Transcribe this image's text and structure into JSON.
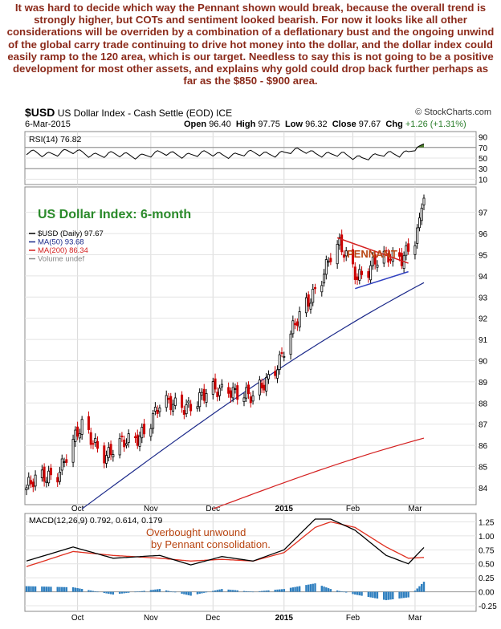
{
  "intro_text": "It was hard to decide which way the Pennant shown would break, because the overall trend is strongly higher, but COTs and sentiment looked bearish. For now it looks like all other considerations will be overriden by a combination of a deflationary bust and the ongoing unwind of the global carry trade continuing to drive hot money into the dollar, and the dollar index could easily ramp to the 120 area, which is our target. Needless to say this is not going to be a positive development for most other assets, and explains why gold could drop back further perhaps as far as the $850 - $900 area.",
  "header": {
    "symbol": "$USD",
    "name": "US Dollar Index - Cash Settle (EOD) ICE",
    "watermark": "© StockCharts.com",
    "date": "6-Mar-2015",
    "open_label": "Open",
    "open": "96.40",
    "high_label": "High",
    "high": "97.75",
    "low_label": "Low",
    "low": "96.32",
    "close_label": "Close",
    "close": "97.67",
    "chg_label": "Chg",
    "chg": "+1.26 (+1.31%)"
  },
  "colors": {
    "price_up": "#000000",
    "price_down": "#cc0000",
    "ma50": "#1c2a8a",
    "ma200": "#d42020",
    "rsi_fill": "#4a7a2a",
    "macd_line": "#000000",
    "signal_line": "#e03020",
    "histogram": "#2f7fbf",
    "annotation": "#b84410",
    "title_green": "#2a8a2a"
  },
  "chart_data": [
    {
      "type": "line",
      "title": "RSI(14) 76.82",
      "y_ticks": [
        90,
        70,
        50,
        30,
        10
      ],
      "ylim": [
        0,
        100
      ],
      "reference_lines": [
        70,
        30
      ],
      "x": [
        "2014-09-08",
        "2014-09-29",
        "2014-10-20",
        "2014-11-10",
        "2014-12-01",
        "2014-12-22",
        "2015-01-12",
        "2015-02-02",
        "2015-02-23",
        "2015-03-06"
      ],
      "values": [
        58,
        60,
        54,
        57,
        56,
        57,
        62,
        51,
        56,
        76.82
      ]
    },
    {
      "type": "candlestick",
      "chart_title": "US Dollar Index: 6-month",
      "legend": [
        "$USD (Daily) 97.67",
        "MA(50) 93.68",
        "MA(200) 86.34",
        "Volume undef"
      ],
      "x_tick_labels": [
        "Oct",
        "Nov",
        "Dec",
        "2015",
        "Feb",
        "Mar"
      ],
      "y_ticks": [
        84,
        85,
        86,
        87,
        88,
        89,
        90,
        91,
        92,
        93,
        94,
        95,
        96,
        97
      ],
      "ylim": [
        83.2,
        98.2
      ],
      "annotation": "PENNANT",
      "price_points": {
        "x": [
          "2014-09-08",
          "2014-09-22",
          "2014-10-03",
          "2014-10-14",
          "2014-10-27",
          "2014-11-07",
          "2014-11-21",
          "2014-12-08",
          "2014-12-19",
          "2014-12-31",
          "2015-01-09",
          "2015-01-23",
          "2015-01-27",
          "2015-02-04",
          "2015-02-12",
          "2015-02-24",
          "2015-03-02",
          "2015-03-06"
        ],
        "values": [
          84.0,
          84.8,
          86.8,
          85.6,
          86.3,
          87.8,
          88.0,
          88.8,
          88.1,
          90.1,
          92.0,
          94.9,
          95.3,
          94.1,
          94.6,
          95.0,
          95.8,
          97.67
        ]
      },
      "ma50": {
        "x_start": "2014-10-03",
        "start": 83.0,
        "end": 93.68
      },
      "ma200": {
        "x_start": "2014-12-01",
        "start": 83.0,
        "end": 86.34
      },
      "pennant": {
        "upper": [
          95.8,
          94.6
        ],
        "lower": [
          93.4,
          94.2
        ]
      }
    },
    {
      "type": "line",
      "title": "MACD(12,26,9) 0.792, 0.614, 0.179",
      "annotation": "Overbought unwound by Pennant consolidation.",
      "x_tick_labels": [
        "Oct",
        "Nov",
        "Dec",
        "2015",
        "Feb",
        "Mar"
      ],
      "y_ticks": [
        1.25,
        1.0,
        0.75,
        0.5,
        0.25,
        0.0,
        -0.25
      ],
      "ylim": [
        -0.35,
        1.4
      ],
      "series": [
        {
          "name": "MACD",
          "x": [
            "2014-09-08",
            "2014-09-29",
            "2014-10-17",
            "2014-11-07",
            "2014-11-21",
            "2014-12-05",
            "2014-12-19",
            "2015-01-02",
            "2015-01-16",
            "2015-01-23",
            "2015-02-03",
            "2015-02-17",
            "2015-02-27",
            "2015-03-06"
          ],
          "values": [
            0.55,
            0.8,
            0.6,
            0.65,
            0.48,
            0.63,
            0.55,
            0.75,
            1.3,
            1.3,
            1.1,
            0.65,
            0.5,
            0.792
          ]
        },
        {
          "name": "Signal",
          "x": [
            "2014-09-08",
            "2014-09-29",
            "2014-10-17",
            "2014-11-07",
            "2014-11-21",
            "2014-12-05",
            "2014-12-19",
            "2015-01-02",
            "2015-01-16",
            "2015-01-23",
            "2015-02-03",
            "2015-02-17",
            "2015-02-27",
            "2015-03-06"
          ],
          "values": [
            0.45,
            0.72,
            0.65,
            0.6,
            0.55,
            0.58,
            0.55,
            0.7,
            1.15,
            1.25,
            1.15,
            0.8,
            0.6,
            0.614
          ]
        },
        {
          "name": "Histogram",
          "x": [
            "2014-09-08",
            "2014-09-29",
            "2014-10-17",
            "2014-11-07",
            "2014-11-21",
            "2014-12-05",
            "2014-12-19",
            "2015-01-02",
            "2015-01-16",
            "2015-01-23",
            "2015-02-03",
            "2015-02-17",
            "2015-02-27",
            "2015-03-06"
          ],
          "values": [
            0.1,
            0.08,
            -0.05,
            0.05,
            -0.07,
            0.05,
            0.0,
            0.05,
            0.15,
            0.05,
            -0.05,
            -0.15,
            -0.1,
            0.179
          ]
        }
      ]
    }
  ]
}
